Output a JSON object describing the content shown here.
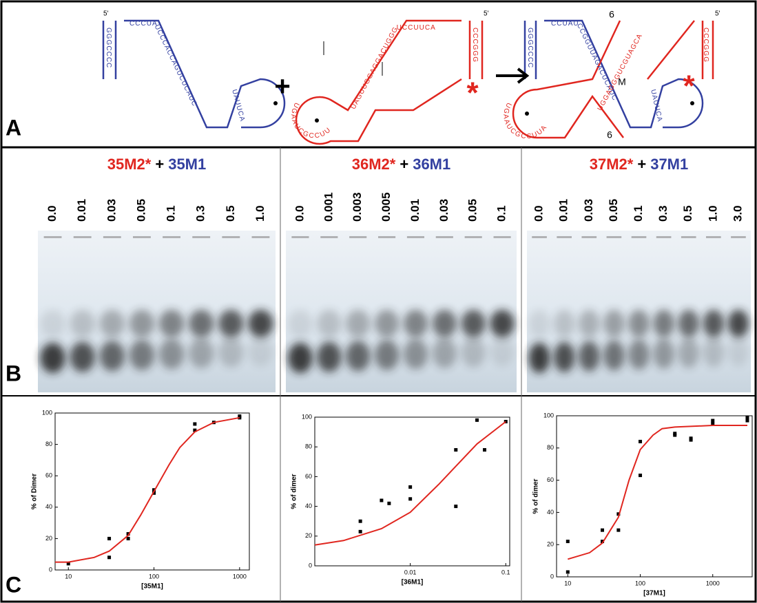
{
  "panel_a": {
    "label": "A",
    "plus": "+",
    "five_prime": [
      "5'",
      "5'",
      "5'"
    ],
    "star": [
      "*",
      "*"
    ],
    "junction": [
      "6",
      "M",
      "6"
    ],
    "sequences": [
      "GGGCCCC",
      "CCCUAUCCCACCAGUCUCAUC",
      "UAUUCAGU",
      "CCCGGG",
      "UAGUUGGAGGACUGGGUCCUUCA",
      "UGAAUCGCCUUAG",
      "GGGCCCC",
      "CCUAUCCGGUUAGACUCAUC",
      "UAUUCAGU",
      "CCCGGG",
      "UGGAGGGUCGUAGCA",
      "UGAAUCGCCUUAG"
    ]
  },
  "panel_b": {
    "label": "B",
    "gels": [
      {
        "title": [
          {
            "text": "35M2*",
            "color": "#e0261f"
          },
          {
            "text": "+",
            "color": "#000000"
          },
          {
            "text": "35M1",
            "color": "#3340a0"
          }
        ],
        "lanes": [
          "0.0",
          "0.01",
          "0.03",
          "0.05",
          "0.1",
          "0.3",
          "0.5",
          "1.0"
        ]
      },
      {
        "title": [
          {
            "text": "36M2*",
            "color": "#e0261f"
          },
          {
            "text": "+",
            "color": "#000000"
          },
          {
            "text": "36M1",
            "color": "#3340a0"
          }
        ],
        "lanes": [
          "0.0",
          "0.001",
          "0.003",
          "0.005",
          "0.01",
          "0.03",
          "0.05",
          "0.1"
        ]
      },
      {
        "title": [
          {
            "text": "37M2*",
            "color": "#e0261f"
          },
          {
            "text": "+",
            "color": "#000000"
          },
          {
            "text": "37M1",
            "color": "#3340a0"
          }
        ],
        "lanes": [
          "0.0",
          "0.01",
          "0.03",
          "0.05",
          "0.1",
          "0.3",
          "0.5",
          "1.0",
          "3.0"
        ]
      }
    ]
  },
  "panel_c_label": "C",
  "chart_data": [
    {
      "type": "scatter",
      "xlabel": "[35M1]",
      "ylabel": "% of Dimer",
      "xlog": true,
      "xlim": [
        7,
        1300
      ],
      "ylim": [
        0,
        100
      ],
      "xticks": [
        10,
        100,
        1000
      ],
      "yticks": [
        0,
        20,
        40,
        60,
        80,
        100
      ],
      "series": [
        {
          "color": "#000000",
          "x": [
            10,
            30,
            30,
            50,
            50,
            100,
            100,
            300,
            300,
            500,
            1000,
            1000
          ],
          "values": [
            4,
            20,
            8,
            23,
            20,
            51,
            49,
            93,
            89,
            94,
            97,
            98
          ]
        },
        {
          "color": "#e0261f",
          "line": true,
          "x": [
            7,
            10,
            20,
            30,
            50,
            70,
            100,
            150,
            200,
            300,
            500,
            1000
          ],
          "values": [
            5,
            5,
            8,
            12,
            22,
            35,
            50,
            67,
            78,
            88,
            94,
            97
          ]
        }
      ]
    },
    {
      "type": "scatter",
      "xlabel": "[36M1]",
      "ylabel": "% of dimer",
      "xlog": true,
      "xlim": [
        0.001,
        0.11
      ],
      "ylim": [
        0,
        100
      ],
      "xticks": [
        0.01,
        0.1
      ],
      "yticks": [
        0,
        20,
        40,
        60,
        80,
        100
      ],
      "series": [
        {
          "color": "#000000",
          "x": [
            0.003,
            0.003,
            0.005,
            0.006,
            0.01,
            0.01,
            0.03,
            0.03,
            0.05,
            0.06,
            0.1
          ],
          "values": [
            30,
            23,
            44,
            42,
            53,
            45,
            78,
            40,
            98,
            78,
            97
          ]
        },
        {
          "color": "#e0261f",
          "line": true,
          "x": [
            0.001,
            0.002,
            0.005,
            0.01,
            0.02,
            0.03,
            0.05,
            0.1
          ],
          "values": [
            14,
            17,
            25,
            36,
            55,
            67,
            82,
            97
          ]
        }
      ]
    },
    {
      "type": "scatter",
      "xlabel": "[37M1]",
      "ylabel": "% of dimer",
      "xlog": true,
      "xlim": [
        7,
        3500
      ],
      "ylim": [
        0,
        100
      ],
      "xticks": [
        10,
        100,
        1000
      ],
      "yticks": [
        0,
        20,
        40,
        60,
        80,
        100
      ],
      "series": [
        {
          "color": "#000000",
          "x": [
            10,
            10,
            30,
            30,
            50,
            50,
            100,
            100,
            300,
            300,
            500,
            500,
            1000,
            1000,
            3000,
            3000
          ],
          "values": [
            22,
            3,
            29,
            22,
            39,
            29,
            84,
            63,
            89,
            88,
            86,
            85,
            97,
            95,
            99,
            97
          ]
        },
        {
          "color": "#e0261f",
          "line": true,
          "x": [
            10,
            20,
            30,
            50,
            70,
            100,
            150,
            200,
            300,
            1000,
            3000
          ],
          "values": [
            11,
            15,
            21,
            37,
            60,
            79,
            88,
            92,
            93,
            94,
            94
          ]
        }
      ]
    }
  ]
}
